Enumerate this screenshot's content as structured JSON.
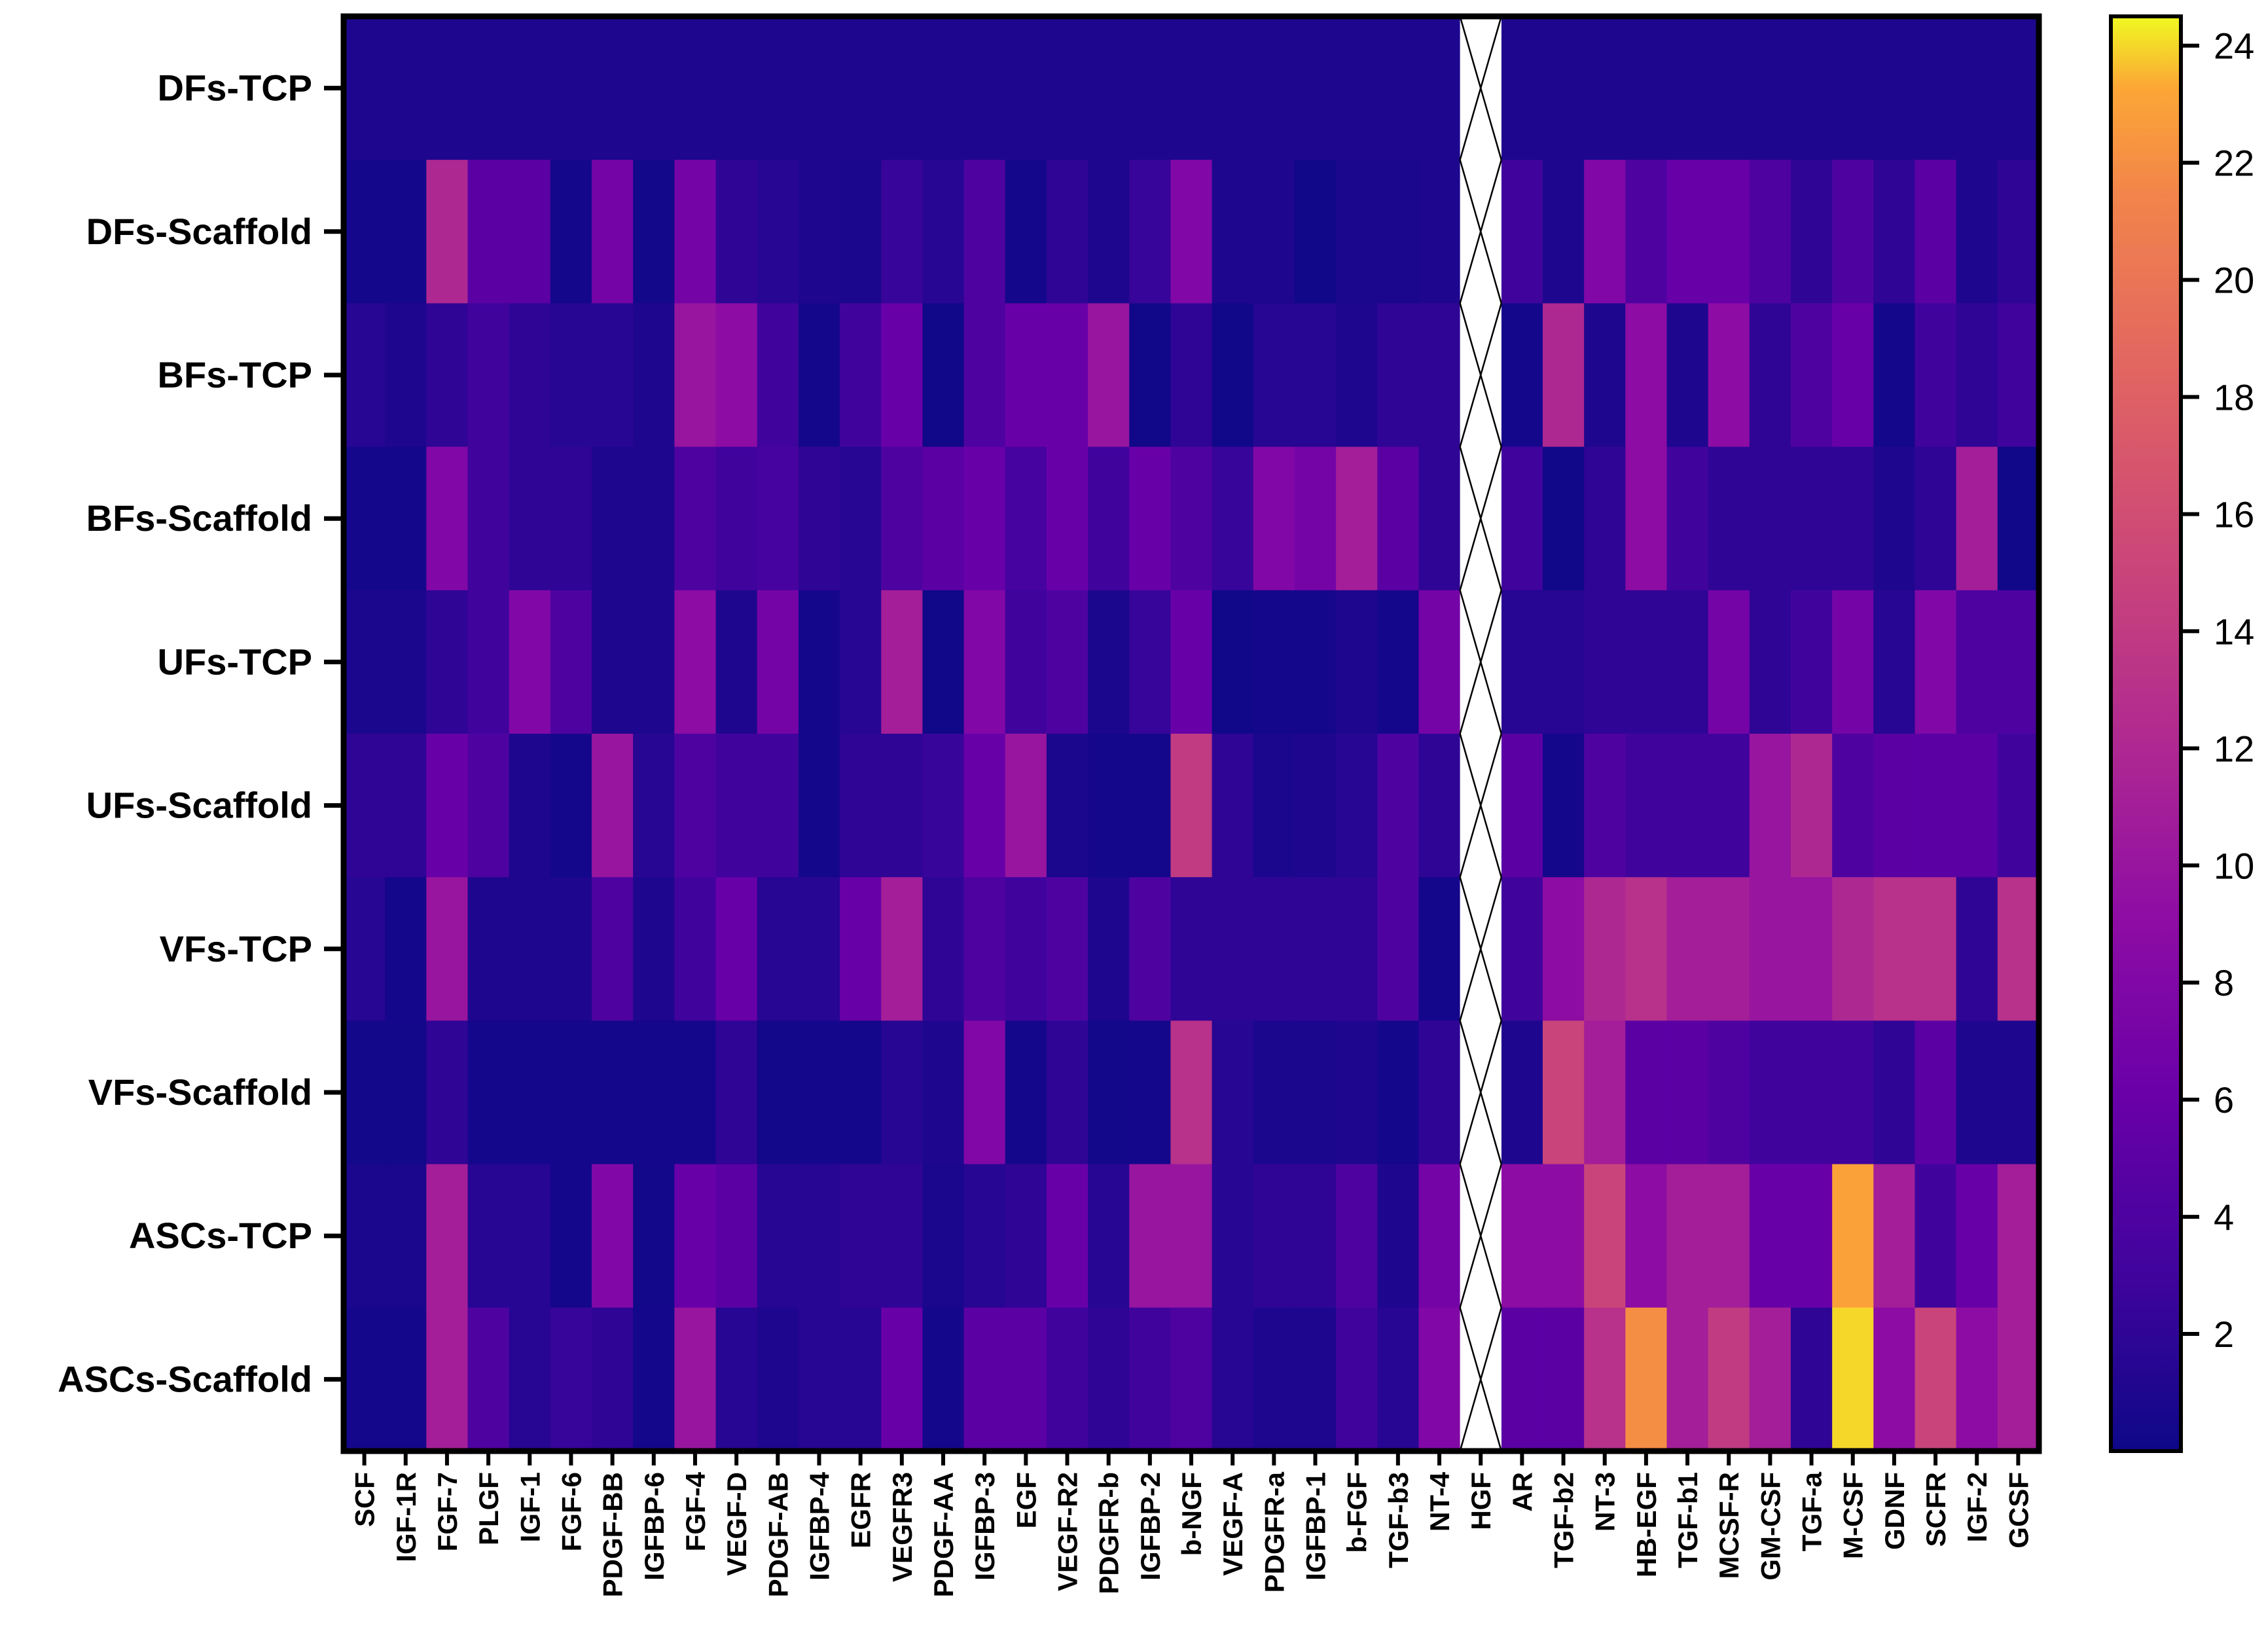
{
  "chart_data": {
    "type": "heatmap",
    "title": "",
    "xlabel": "",
    "ylabel": "",
    "rows": [
      "DFs-TCP",
      "DFs-Scaffold",
      "BFs-TCP",
      "BFs-Scaffold",
      "UFs-TCP",
      "UFs-Scaffold",
      "VFs-TCP",
      "VFs-Scaffold",
      "ASCs-TCP",
      "ASCs-Scaffold"
    ],
    "columns": [
      "SCF",
      "IGF-1R",
      "FGF-7",
      "PLGF",
      "IGF-1",
      "FGF-6",
      "PDGF-BB",
      "IGFBP-6",
      "FGF-4",
      "VEGF-D",
      "PDGF-AB",
      "IGFBP-4",
      "EGFR",
      "VEGFR3",
      "PDGF-AA",
      "IGFBP-3",
      "EGF",
      "VEGF-R2",
      "PDGFR-b",
      "IGFBP-2",
      "b-NGF",
      "VEGF-A",
      "PDGFR-a",
      "IGFBP-1",
      "b-FGF",
      "TGF-b3",
      "NT-4",
      "HGF",
      "AR",
      "TGF-b2",
      "NT-3",
      "HB-EGF",
      "TGF-b1",
      "MCSF-R",
      "GM-CSF",
      "TGF-a",
      "M-CSF",
      "GDNF",
      "SCFR",
      "IGF-2",
      "GCSF"
    ],
    "missing_column": "HGF",
    "colorbar": {
      "colormap": "plasma",
      "range": [
        0,
        24.5
      ],
      "ticks": [
        2,
        4,
        6,
        8,
        10,
        12,
        14,
        16,
        18,
        20,
        22,
        24
      ],
      "tick_labels": [
        "2",
        "4",
        "6",
        "8",
        "10",
        "12",
        "14",
        "16",
        "18",
        "20",
        "22",
        "24"
      ]
    },
    "values": [
      [
        1,
        1,
        1,
        1,
        1,
        1,
        1,
        1,
        1,
        1,
        1,
        1,
        1,
        1,
        1,
        1,
        1,
        1,
        1,
        1,
        1,
        1,
        1,
        1,
        1,
        1,
        1,
        null,
        1,
        1,
        1,
        1,
        1,
        1,
        1,
        1,
        1,
        1,
        1,
        1,
        1
      ],
      [
        0.5,
        0.5,
        12,
        5,
        5,
        0.5,
        7,
        0.3,
        7,
        2,
        1.5,
        1,
        0.8,
        2.5,
        1.5,
        4,
        0.5,
        2,
        1,
        2.5,
        8,
        1,
        1,
        0.2,
        0.8,
        0.8,
        1,
        null,
        3,
        1,
        8,
        4,
        6,
        6,
        4,
        2,
        4,
        2,
        5,
        1,
        2
      ],
      [
        1.5,
        1,
        2,
        3,
        2,
        1.5,
        1.5,
        1,
        10,
        9,
        3,
        0.5,
        3,
        6,
        0.2,
        4,
        6,
        6,
        10,
        0.2,
        2,
        0.2,
        1.5,
        1.5,
        1,
        2,
        2,
        null,
        0.5,
        12,
        1,
        9,
        1,
        9,
        2,
        4,
        6,
        0.5,
        3,
        2,
        3
      ],
      [
        0.5,
        0.5,
        8,
        3,
        2,
        2,
        1,
        1,
        4,
        3,
        3.5,
        2,
        1.5,
        4,
        5,
        6,
        3.5,
        6,
        3,
        6,
        4,
        2.5,
        8,
        7,
        11,
        5,
        2,
        null,
        3,
        0.2,
        2,
        9,
        3,
        2,
        2,
        2,
        2,
        1,
        2,
        11,
        0.2
      ],
      [
        0.8,
        0.8,
        2,
        3,
        8,
        4,
        1,
        1,
        9,
        1,
        7,
        0.5,
        1.5,
        11,
        0.2,
        8,
        3,
        4,
        0.8,
        2.5,
        6,
        0.2,
        0.5,
        0.5,
        1,
        0.5,
        7,
        null,
        1.5,
        1.5,
        2,
        2,
        2,
        7,
        2,
        3,
        7,
        1.5,
        8,
        4,
        4
      ],
      [
        2,
        2,
        6,
        4,
        1,
        0.5,
        10,
        1.5,
        4,
        3,
        3,
        0.5,
        2,
        2,
        2.5,
        6,
        10,
        0.8,
        0.5,
        0.5,
        14,
        2,
        0.8,
        1,
        1.5,
        4,
        2,
        null,
        5,
        0.5,
        4,
        3,
        3,
        3,
        10,
        12,
        4,
        5,
        5,
        5,
        3
      ],
      [
        1.5,
        0.5,
        10,
        1,
        1,
        1,
        4,
        1,
        3,
        6,
        1.5,
        1.5,
        6,
        11,
        2,
        4,
        3,
        4,
        1,
        4,
        2,
        2,
        2,
        2,
        2,
        4,
        0.5,
        null,
        3,
        9,
        12,
        13,
        11,
        11,
        10,
        10,
        12,
        13,
        13,
        2,
        13
      ],
      [
        0.3,
        0.3,
        2,
        0.5,
        0.5,
        0.5,
        0.5,
        0.5,
        0.5,
        2,
        0.3,
        0.5,
        0.5,
        1.5,
        1,
        8,
        0.5,
        2,
        0.3,
        0.5,
        13,
        1.5,
        0.8,
        0.8,
        1,
        0.5,
        2,
        null,
        1,
        15,
        11,
        5,
        5,
        4,
        3,
        3,
        3,
        2,
        5,
        1,
        1
      ],
      [
        0.8,
        0.8,
        11,
        1.5,
        1.5,
        0.5,
        8,
        0.3,
        6,
        5,
        1.5,
        1.5,
        2,
        2,
        0.8,
        1.5,
        2,
        6,
        1.5,
        10,
        10,
        1.5,
        2,
        2,
        4,
        1,
        7,
        null,
        9,
        9,
        15,
        9,
        11,
        11,
        6,
        6,
        23,
        11,
        3,
        6,
        11
      ],
      [
        0.5,
        0.5,
        11,
        4,
        1.5,
        2.5,
        2,
        0.5,
        10,
        1.5,
        1,
        1.5,
        1.5,
        6,
        0.5,
        5,
        5,
        3,
        2,
        3,
        4,
        1.5,
        1,
        1,
        3,
        1.5,
        8,
        null,
        5,
        5,
        13,
        22,
        11,
        14,
        11,
        2,
        24,
        9,
        15,
        9,
        11
      ]
    ]
  }
}
